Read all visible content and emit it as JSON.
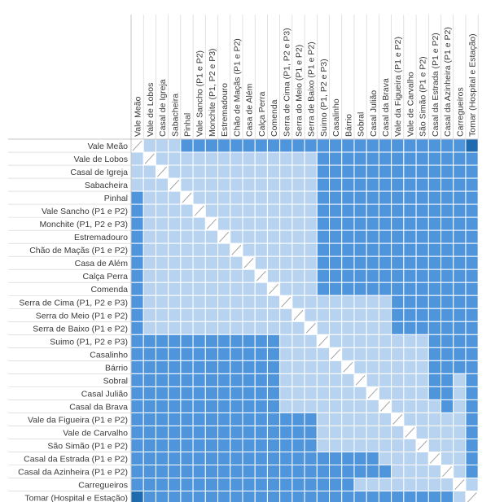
{
  "chart_data": {
    "type": "heatmap",
    "title": "",
    "xlabel": "",
    "ylabel": "",
    "labels": [
      "Vale Meão",
      "Vale de Lobos",
      "Casal de Igreja",
      "Sabacheira",
      "Pinhal",
      "Vale Sancho (P1 e P2)",
      "Monchite (P1, P2 e P3)",
      "Estremadouro",
      "Chão de Maçãs (P1 e P2)",
      "Casa de Além",
      "Calça Perra",
      "Comenda",
      "Serra de Cima (P1, P2 e P3)",
      "Serra do Meio (P1 e P2)",
      "Serra de Baixo (P1 e P2)",
      "Suimo (P1, P2 e P3)",
      "Casalinho",
      "Bárrio",
      "Sobral",
      "Casal Julião",
      "Casal da Brava",
      "Vale da Figueira (P1 e P2)",
      "Vale de Carvalho",
      "São Simão (P1 e P2)",
      "Casal da Estrada (P1 e P2)",
      "Casal da Azinheira (P1 e P2)",
      "Carregueiros",
      "Tomar (Hospital e Estação)"
    ],
    "levels": [
      [
        0,
        1,
        1,
        1,
        2,
        2,
        2,
        2,
        2,
        2,
        2,
        2,
        2,
        2,
        2,
        2,
        2,
        2,
        2,
        2,
        2,
        2,
        2,
        2,
        2,
        2,
        2,
        3
      ],
      [
        1,
        0,
        1,
        1,
        1,
        1,
        1,
        1,
        1,
        1,
        1,
        1,
        1,
        1,
        1,
        2,
        2,
        2,
        2,
        2,
        2,
        2,
        2,
        2,
        2,
        2,
        2,
        2
      ],
      [
        1,
        1,
        0,
        1,
        1,
        1,
        1,
        1,
        1,
        1,
        1,
        1,
        1,
        1,
        1,
        2,
        2,
        2,
        2,
        2,
        2,
        2,
        2,
        2,
        2,
        2,
        2,
        2
      ],
      [
        1,
        1,
        1,
        0,
        1,
        1,
        1,
        1,
        1,
        1,
        1,
        1,
        1,
        1,
        1,
        2,
        2,
        2,
        2,
        2,
        2,
        2,
        2,
        2,
        2,
        2,
        2,
        2
      ],
      [
        2,
        1,
        1,
        1,
        0,
        1,
        1,
        1,
        1,
        1,
        1,
        1,
        1,
        1,
        1,
        2,
        2,
        2,
        2,
        2,
        2,
        2,
        2,
        2,
        2,
        2,
        2,
        2
      ],
      [
        2,
        1,
        1,
        1,
        1,
        0,
        1,
        1,
        1,
        1,
        1,
        1,
        1,
        1,
        1,
        2,
        2,
        2,
        2,
        2,
        2,
        2,
        2,
        2,
        2,
        2,
        2,
        2
      ],
      [
        2,
        1,
        1,
        1,
        1,
        1,
        0,
        1,
        1,
        1,
        1,
        1,
        1,
        1,
        1,
        2,
        2,
        2,
        2,
        2,
        2,
        2,
        2,
        2,
        2,
        2,
        2,
        2
      ],
      [
        2,
        1,
        1,
        1,
        1,
        1,
        1,
        0,
        1,
        1,
        1,
        1,
        1,
        1,
        1,
        2,
        2,
        2,
        2,
        2,
        2,
        2,
        2,
        2,
        2,
        2,
        2,
        2
      ],
      [
        2,
        1,
        1,
        1,
        1,
        1,
        1,
        1,
        0,
        1,
        1,
        1,
        1,
        1,
        1,
        2,
        2,
        2,
        2,
        2,
        2,
        2,
        2,
        2,
        2,
        2,
        2,
        2
      ],
      [
        2,
        1,
        1,
        1,
        1,
        1,
        1,
        1,
        1,
        0,
        1,
        1,
        1,
        1,
        1,
        2,
        2,
        2,
        2,
        2,
        2,
        2,
        2,
        2,
        2,
        2,
        2,
        2
      ],
      [
        2,
        1,
        1,
        1,
        1,
        1,
        1,
        1,
        1,
        1,
        0,
        1,
        1,
        1,
        1,
        2,
        2,
        2,
        2,
        2,
        2,
        2,
        2,
        2,
        2,
        2,
        2,
        2
      ],
      [
        2,
        1,
        1,
        1,
        1,
        1,
        1,
        1,
        1,
        1,
        1,
        0,
        1,
        1,
        1,
        2,
        2,
        2,
        2,
        2,
        2,
        2,
        2,
        2,
        2,
        2,
        2,
        2
      ],
      [
        2,
        1,
        1,
        1,
        1,
        1,
        1,
        1,
        1,
        1,
        1,
        1,
        0,
        1,
        1,
        1,
        1,
        1,
        1,
        1,
        1,
        2,
        2,
        2,
        2,
        2,
        2,
        2
      ],
      [
        2,
        1,
        1,
        1,
        1,
        1,
        1,
        1,
        1,
        1,
        1,
        1,
        1,
        0,
        1,
        1,
        1,
        1,
        1,
        1,
        1,
        2,
        2,
        2,
        2,
        2,
        2,
        2
      ],
      [
        2,
        1,
        1,
        1,
        1,
        1,
        1,
        1,
        1,
        1,
        1,
        1,
        1,
        1,
        0,
        1,
        1,
        1,
        1,
        1,
        1,
        2,
        2,
        2,
        2,
        2,
        2,
        2
      ],
      [
        2,
        2,
        2,
        2,
        2,
        2,
        2,
        2,
        2,
        2,
        2,
        2,
        1,
        1,
        1,
        0,
        1,
        1,
        1,
        1,
        1,
        1,
        1,
        1,
        2,
        2,
        2,
        2
      ],
      [
        2,
        2,
        2,
        2,
        2,
        2,
        2,
        2,
        2,
        2,
        2,
        2,
        1,
        1,
        1,
        1,
        0,
        1,
        1,
        1,
        1,
        1,
        1,
        1,
        2,
        2,
        2,
        2
      ],
      [
        2,
        2,
        2,
        2,
        2,
        2,
        2,
        2,
        2,
        2,
        2,
        2,
        1,
        1,
        1,
        1,
        1,
        0,
        1,
        1,
        1,
        1,
        1,
        1,
        2,
        2,
        2,
        2
      ],
      [
        2,
        2,
        2,
        2,
        2,
        2,
        2,
        2,
        2,
        2,
        2,
        2,
        1,
        1,
        1,
        1,
        1,
        1,
        0,
        1,
        1,
        1,
        1,
        1,
        2,
        2,
        1,
        2
      ],
      [
        2,
        2,
        2,
        2,
        2,
        2,
        2,
        2,
        2,
        2,
        2,
        2,
        1,
        1,
        1,
        1,
        1,
        1,
        1,
        0,
        1,
        1,
        1,
        1,
        2,
        2,
        1,
        2
      ],
      [
        2,
        2,
        2,
        2,
        2,
        2,
        2,
        2,
        2,
        2,
        2,
        2,
        1,
        1,
        1,
        1,
        1,
        1,
        1,
        1,
        0,
        1,
        1,
        1,
        1,
        2,
        1,
        2
      ],
      [
        2,
        2,
        2,
        2,
        2,
        2,
        2,
        2,
        2,
        2,
        2,
        2,
        2,
        2,
        2,
        1,
        1,
        1,
        1,
        1,
        1,
        0,
        1,
        1,
        1,
        1,
        1,
        2
      ],
      [
        2,
        2,
        2,
        2,
        2,
        2,
        2,
        2,
        2,
        2,
        2,
        2,
        2,
        2,
        2,
        1,
        1,
        1,
        1,
        1,
        1,
        1,
        0,
        1,
        1,
        1,
        1,
        2
      ],
      [
        2,
        2,
        2,
        2,
        2,
        2,
        2,
        2,
        2,
        2,
        2,
        2,
        2,
        2,
        2,
        1,
        1,
        1,
        1,
        1,
        1,
        1,
        1,
        0,
        1,
        1,
        1,
        2
      ],
      [
        2,
        2,
        2,
        2,
        2,
        2,
        2,
        2,
        2,
        2,
        2,
        2,
        2,
        2,
        2,
        2,
        2,
        2,
        2,
        2,
        1,
        1,
        1,
        1,
        0,
        1,
        1,
        2
      ],
      [
        2,
        2,
        2,
        2,
        2,
        2,
        2,
        2,
        2,
        2,
        2,
        2,
        2,
        2,
        2,
        2,
        2,
        2,
        2,
        2,
        2,
        1,
        1,
        1,
        1,
        0,
        1,
        2
      ],
      [
        2,
        2,
        2,
        2,
        2,
        2,
        2,
        2,
        2,
        2,
        2,
        2,
        2,
        2,
        2,
        2,
        2,
        2,
        1,
        1,
        1,
        1,
        1,
        1,
        1,
        1,
        0,
        1
      ],
      [
        3,
        2,
        2,
        2,
        2,
        2,
        2,
        2,
        2,
        2,
        2,
        2,
        2,
        2,
        2,
        2,
        2,
        2,
        2,
        2,
        2,
        2,
        2,
        2,
        2,
        2,
        1,
        0
      ]
    ],
    "colors": {
      "level_0": "#ffffff",
      "level_1": "#b7d3ef",
      "level_2": "#4f95dc",
      "level_3": "#1f6bb0",
      "grid": "#ffffff",
      "text": "#3a3a3a"
    }
  }
}
